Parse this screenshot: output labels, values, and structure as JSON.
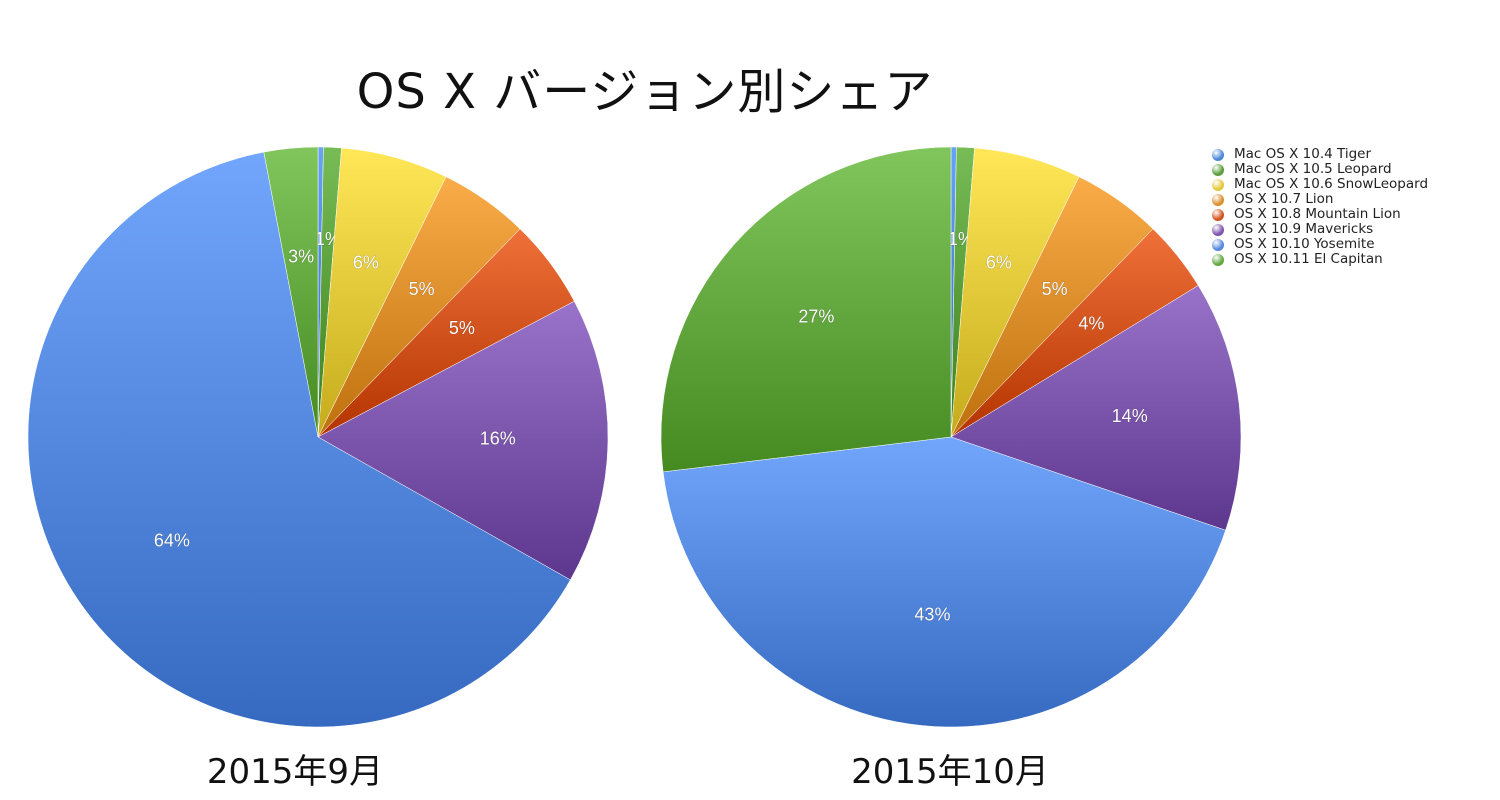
{
  "title": "OS X バージョン別シェア",
  "legend": [
    {
      "label": "Mac OS X 10.4 Tiger",
      "color": "#4a86d8"
    },
    {
      "label": "Mac OS X 10.5 Leopard",
      "color": "#5a9e3a"
    },
    {
      "label": "Mac OS X 10.6 SnowLeopard",
      "color": "#e3c93a"
    },
    {
      "label": "OS X 10.7 Lion",
      "color": "#dc8e2b"
    },
    {
      "label": "OS X 10.8 Mountain Lion",
      "color": "#d2521c"
    },
    {
      "label": "OS X 10.9 Mavericks",
      "color": "#7b55ab"
    },
    {
      "label": "OS X 10.10 Yosemite",
      "color": "#5388de"
    },
    {
      "label": "OS X 10.11 El Capitan",
      "color": "#63a83f"
    }
  ],
  "chart_data": [
    {
      "type": "pie",
      "title": "2015年9月",
      "categories": [
        "Mac OS X 10.4 Tiger",
        "Mac OS X 10.5 Leopard",
        "Mac OS X 10.6 SnowLeopard",
        "OS X 10.7 Lion",
        "OS X 10.8 Mountain Lion",
        "OS X 10.9 Mavericks",
        "OS X 10.10 Yosemite",
        "OS X 10.11 El Capitan"
      ],
      "values": [
        0.3,
        1,
        6,
        5,
        5,
        16,
        64,
        3
      ],
      "labels": [
        "",
        "1%",
        "6%",
        "5%",
        "5%",
        "16%",
        "64%",
        "3%"
      ],
      "legend_position": "top-right"
    },
    {
      "type": "pie",
      "title": "2015年10月",
      "categories": [
        "Mac OS X 10.4 Tiger",
        "Mac OS X 10.5 Leopard",
        "Mac OS X 10.6 SnowLeopard",
        "OS X 10.7 Lion",
        "OS X 10.8 Mountain Lion",
        "OS X 10.9 Mavericks",
        "OS X 10.10 Yosemite",
        "OS X 10.11 El Capitan"
      ],
      "values": [
        0.3,
        1,
        6,
        5,
        4,
        14,
        43,
        27
      ],
      "labels": [
        "",
        "1%",
        "6%",
        "5%",
        "4%",
        "14%",
        "43%",
        "27%"
      ],
      "legend_position": "top-right"
    }
  ]
}
